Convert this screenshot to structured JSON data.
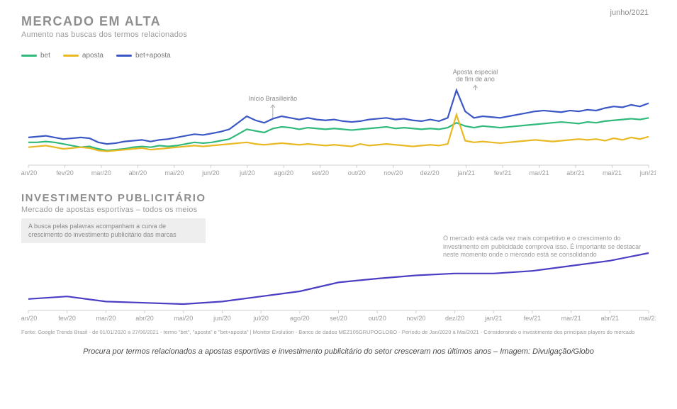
{
  "date_label": "junho/2021",
  "chart1": {
    "type": "line",
    "title": "MERCADO EM ALTA",
    "subtitle": "Aumento nas buscas dos termos relacionados",
    "background_color": "#ffffff",
    "axis_color": "#cfcfcf",
    "label_color": "#9a9a9a",
    "title_color": "#8e8e8e",
    "x_labels": [
      "jan/20",
      "fev/20",
      "mar/20",
      "abr/20",
      "mai/20",
      "jun/20",
      "jul/20",
      "ago/20",
      "set/20",
      "out/20",
      "nov/20",
      "dez/20",
      "jan/21",
      "fev/21",
      "mar/21",
      "abr/21",
      "mai/21",
      "jun/21"
    ],
    "n_points_per_month": 4,
    "ylim": [
      0,
      100
    ],
    "legend": [
      {
        "label": "bet",
        "color": "#2fb97a"
      },
      {
        "label": "aposta",
        "color": "#e8b923"
      },
      {
        "label": "bet+aposta",
        "color": "#3a57c5"
      }
    ],
    "series": {
      "bet": {
        "color": "#2fb97a",
        "values": [
          28,
          28,
          29,
          28,
          26,
          24,
          22,
          23,
          20,
          18,
          19,
          20,
          22,
          23,
          22,
          24,
          23,
          24,
          26,
          28,
          27,
          28,
          30,
          32,
          38,
          44,
          42,
          40,
          45,
          47,
          46,
          44,
          46,
          45,
          44,
          45,
          44,
          43,
          44,
          45,
          46,
          47,
          45,
          46,
          45,
          44,
          45,
          44,
          46,
          52,
          48,
          46,
          48,
          47,
          46,
          47,
          48,
          49,
          50,
          51,
          52,
          53,
          52,
          51,
          53,
          52,
          54,
          55,
          56,
          57,
          56,
          58
        ],
        "line_width": 2.2
      },
      "aposta": {
        "color": "#e8b923",
        "values": [
          22,
          23,
          24,
          22,
          20,
          21,
          22,
          21,
          18,
          17,
          18,
          19,
          20,
          21,
          19,
          20,
          21,
          22,
          23,
          24,
          23,
          24,
          25,
          26,
          27,
          28,
          26,
          25,
          26,
          27,
          26,
          25,
          26,
          25,
          24,
          25,
          24,
          23,
          26,
          24,
          25,
          26,
          25,
          24,
          23,
          24,
          25,
          24,
          26,
          62,
          30,
          28,
          29,
          28,
          27,
          28,
          29,
          30,
          31,
          30,
          29,
          30,
          31,
          32,
          31,
          32,
          30,
          33,
          31,
          34,
          32,
          35
        ],
        "line_width": 2.2
      },
      "bet_aposta": {
        "color": "#3a57c5",
        "values": [
          34,
          35,
          36,
          34,
          32,
          33,
          34,
          33,
          28,
          26,
          27,
          29,
          30,
          31,
          29,
          31,
          32,
          34,
          36,
          38,
          37,
          39,
          41,
          44,
          52,
          60,
          55,
          52,
          57,
          60,
          58,
          56,
          58,
          56,
          55,
          56,
          54,
          53,
          54,
          56,
          57,
          58,
          56,
          57,
          55,
          54,
          56,
          54,
          58,
          92,
          66,
          58,
          60,
          59,
          58,
          60,
          62,
          64,
          66,
          67,
          66,
          65,
          67,
          66,
          68,
          67,
          70,
          72,
          71,
          74,
          72,
          76
        ],
        "line_width": 2.2
      }
    },
    "annotations": [
      {
        "x_month_index": 6.7,
        "label": "Início Brasilleirão",
        "line_from_y": 74,
        "line_to_y": 58
      },
      {
        "x_month_index": 12.25,
        "label": "Aposta especial\nde fim de ano",
        "line_from_y": 98,
        "line_to_y": 92
      }
    ]
  },
  "chart2": {
    "type": "line",
    "title": "INVESTIMENTO PUBLICITÁRIO",
    "subtitle": "Mercado de apostas esportivas – todos os meios",
    "info_box": "A busca pelas palavras acompanham a curva de crescimento do investimento publicitário das marcas",
    "side_note": "O mercado está cada vez mais competitivo e o crescimento do investimento em publicidade comprova isso. É importante se destacar neste momento onde o mercado está se consolidando",
    "axis_color": "#cfcfcf",
    "label_color": "#9a9a9a",
    "title_color": "#8e8e8e",
    "x_labels": [
      "jan/20",
      "fev/20",
      "mar/20",
      "abr/20",
      "mai/20",
      "jun/20",
      "jul/20",
      "ago/20",
      "set/20",
      "out/20",
      "nov/20",
      "dez/20",
      "jan/21",
      "fev/21",
      "mar/21",
      "abr/21",
      "mai/21"
    ],
    "ylim": [
      0,
      100
    ],
    "series": {
      "invest": {
        "color": "#4a3fc4",
        "values": [
          18,
          22,
          14,
          12,
          10,
          14,
          22,
          30,
          44,
          50,
          55,
          58,
          58,
          62,
          70,
          78,
          90
        ],
        "line_width": 2.2
      }
    }
  },
  "source_text": "Fonte: Google Trends Brasil - de 01/01/2020 a 27/06/2021 - termo \"bet\", \"aposta\" e \"bet+aposta\" | Monitor Evolution - Banco de dados MEZ105GRUPOGLOBO - Período de Jan/2020 à Mai/2021 - Considerando o investimento dos principais players do mercado",
  "caption": "Procura por termos relacionados a apostas esportivas e investimento publicitário do setor cresceram nos últimos anos – Imagem: Divulgação/Globo"
}
